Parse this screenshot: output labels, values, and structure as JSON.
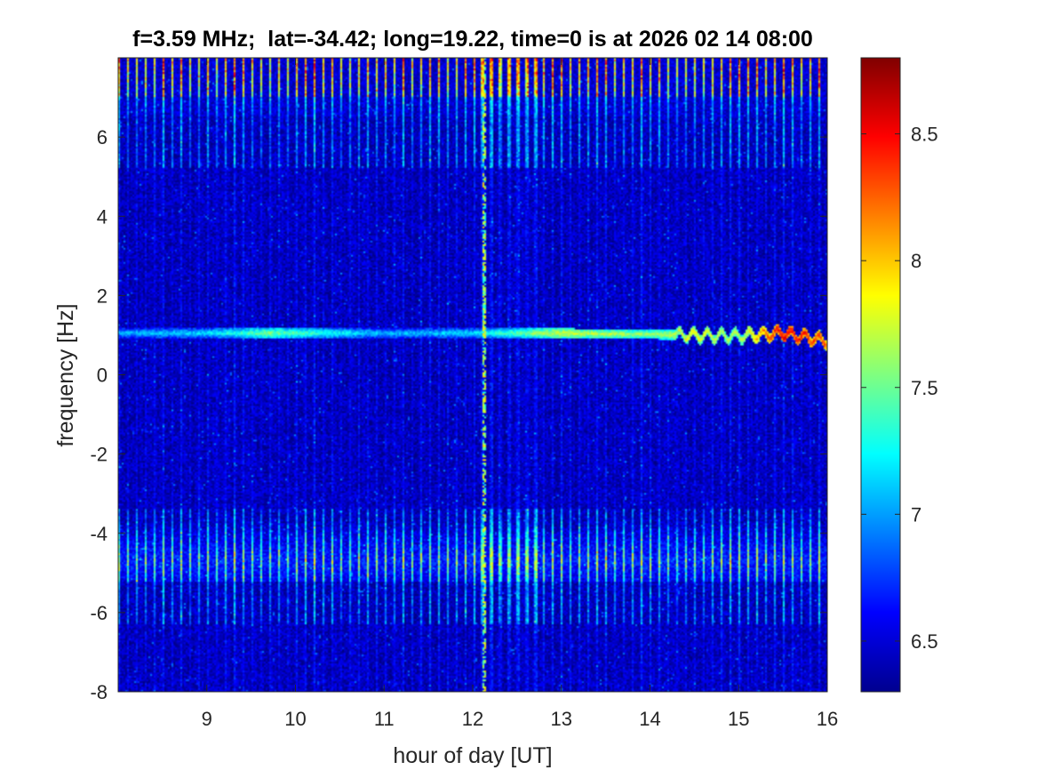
{
  "chart_data": {
    "type": "heatmap",
    "title": "f=3.59 MHz;  lat=-34.42; long=19.22, time=0 is at 2026 02 14 08:00",
    "xlabel": "hour of day [UT]",
    "ylabel": "frequency [Hz]",
    "xlim": [
      8,
      16
    ],
    "ylim": [
      -8,
      8
    ],
    "xticks": [
      9,
      10,
      11,
      12,
      13,
      14,
      15,
      16
    ],
    "xtick_labels": [
      "9",
      "10",
      "11",
      "12",
      "13",
      "14",
      "15",
      "16"
    ],
    "yticks": [
      -8,
      -6,
      -4,
      -2,
      0,
      2,
      4,
      6
    ],
    "ytick_labels": [
      "-8",
      "-6",
      "-4",
      "-2",
      "0",
      "2",
      "4",
      "6"
    ],
    "colorbar": {
      "colormap": "jet",
      "clim": [
        6.3,
        8.8
      ],
      "ticks": [
        6.5,
        7,
        7.5,
        8,
        8.5
      ],
      "tick_labels": [
        "6.5",
        "7",
        "7.5",
        "8",
        "8.5"
      ]
    },
    "features": {
      "noise_floor_level": 6.45,
      "doppler_line": [
        {
          "hour": 8.0,
          "freq": 1.05,
          "level": 7.1
        },
        {
          "hour": 9.0,
          "freq": 1.05,
          "level": 7.2
        },
        {
          "hour": 9.7,
          "freq": 1.05,
          "level": 7.6
        },
        {
          "hour": 11.0,
          "freq": 1.05,
          "level": 7.1
        },
        {
          "hour": 12.0,
          "freq": 1.05,
          "level": 7.2
        },
        {
          "hour": 13.0,
          "freq": 1.05,
          "level": 7.8
        },
        {
          "hour": 14.0,
          "freq": 1.02,
          "level": 7.6
        },
        {
          "hour": 14.5,
          "freq": 1.0,
          "level": 7.9
        },
        {
          "hour": 15.0,
          "freq": 0.98,
          "level": 7.7
        },
        {
          "hour": 15.5,
          "freq": 1.05,
          "level": 8.6
        },
        {
          "hour": 16.0,
          "freq": 0.85,
          "level": 8.3
        }
      ],
      "interference_band": {
        "freq_min": -5.2,
        "freq_max": -3.5,
        "center": -4.7,
        "level": 8.3
      },
      "top_edge_band": {
        "freq_min": 6.5,
        "freq_max": 8.0,
        "level": 8.4
      },
      "periodic_stripe_spacing_hours": 0.1,
      "vertical_artifact_hour": 12.13
    }
  }
}
